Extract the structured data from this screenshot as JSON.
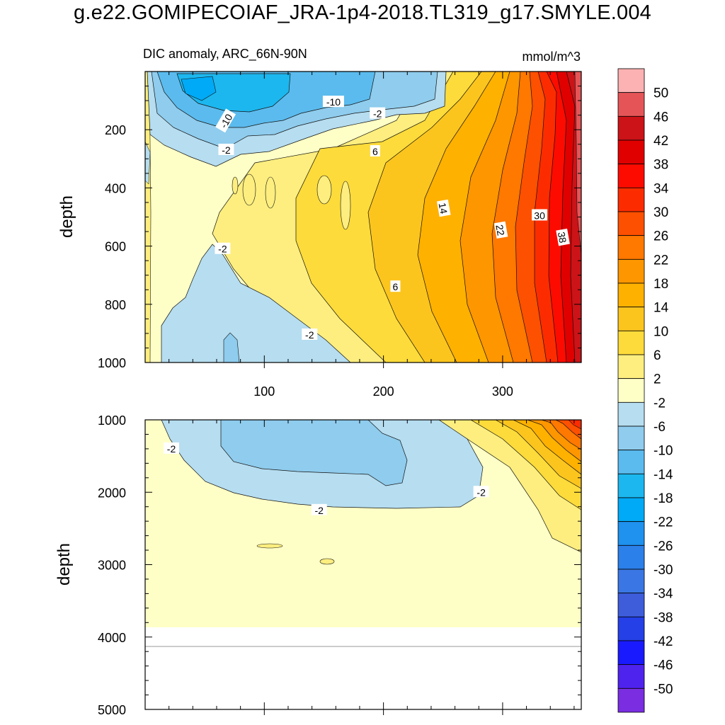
{
  "figure_title": "g.e22.GOMIPECOIAF_JRA-1p4-2018.TL319_g17.SMYLE.004",
  "chart_data": [
    {
      "type": "heatmap",
      "panel": "upper",
      "title": "DIC anomaly, ARC_66N-90N",
      "units": "mmol/m^3",
      "xlabel": "",
      "ylabel": "depth",
      "xlim": [
        0,
        366
      ],
      "ylim": [
        1000,
        0
      ],
      "xticks": [
        100,
        200,
        300
      ],
      "yticks": [
        200,
        400,
        600,
        800,
        1000
      ],
      "contour_interval": 4,
      "contour_labels": [
        {
          "text": "-10",
          "x": 68,
          "y": 170
        },
        {
          "text": "-10",
          "x": 158,
          "y": 105
        },
        {
          "text": "-2",
          "x": 195,
          "y": 145
        },
        {
          "text": "-2",
          "x": 68,
          "y": 270
        },
        {
          "text": "6",
          "x": 193,
          "y": 275
        },
        {
          "text": "14",
          "x": 250,
          "y": 470
        },
        {
          "text": "22",
          "x": 298,
          "y": 545
        },
        {
          "text": "30",
          "x": 331,
          "y": 495
        },
        {
          "text": "38",
          "x": 350,
          "y": 570
        },
        {
          "text": "-2",
          "x": 65,
          "y": 610
        },
        {
          "text": "6",
          "x": 210,
          "y": 740
        },
        {
          "text": "-2",
          "x": 138,
          "y": 905
        }
      ],
      "max_value": 50,
      "min_value": -14
    },
    {
      "type": "heatmap",
      "panel": "lower",
      "xlabel": "",
      "ylabel": "depth",
      "xlim": [
        0,
        366
      ],
      "ylim": [
        5000,
        1000
      ],
      "yticks": [
        1000,
        2000,
        3000,
        4000,
        5000
      ],
      "bottom_depth": 4130,
      "contour_labels": [
        {
          "text": "-2",
          "x": 22,
          "y": 1400
        },
        {
          "text": "-2",
          "x": 146,
          "y": 2250
        },
        {
          "text": "-2",
          "x": 282,
          "y": 2000
        }
      ]
    }
  ],
  "colorbar": {
    "levels": [
      50,
      46,
      42,
      38,
      34,
      30,
      26,
      22,
      18,
      14,
      10,
      6,
      2,
      -2,
      -6,
      -10,
      -14,
      -18,
      -22,
      -26,
      -30,
      -34,
      -38,
      -42,
      -46,
      -50
    ],
    "colors": [
      "#fcb2b2",
      "#e55557",
      "#cc1317",
      "#e00000",
      "#fd0b00",
      "#fd2c00",
      "#fd5000",
      "#ff7800",
      "#fe9600",
      "#ffb100",
      "#fcc51e",
      "#fddb3a",
      "#fdee7f",
      "#feffc6",
      "#b6ddf0",
      "#8fcced",
      "#5bbbee",
      "#1cb7ee",
      "#00aaf6",
      "#1f91ee",
      "#2b80ea",
      "#3b77e4",
      "#3d5ddb",
      "#2440e6",
      "#1a1aff",
      "#4f23ee",
      "#7a2de1"
    ]
  }
}
